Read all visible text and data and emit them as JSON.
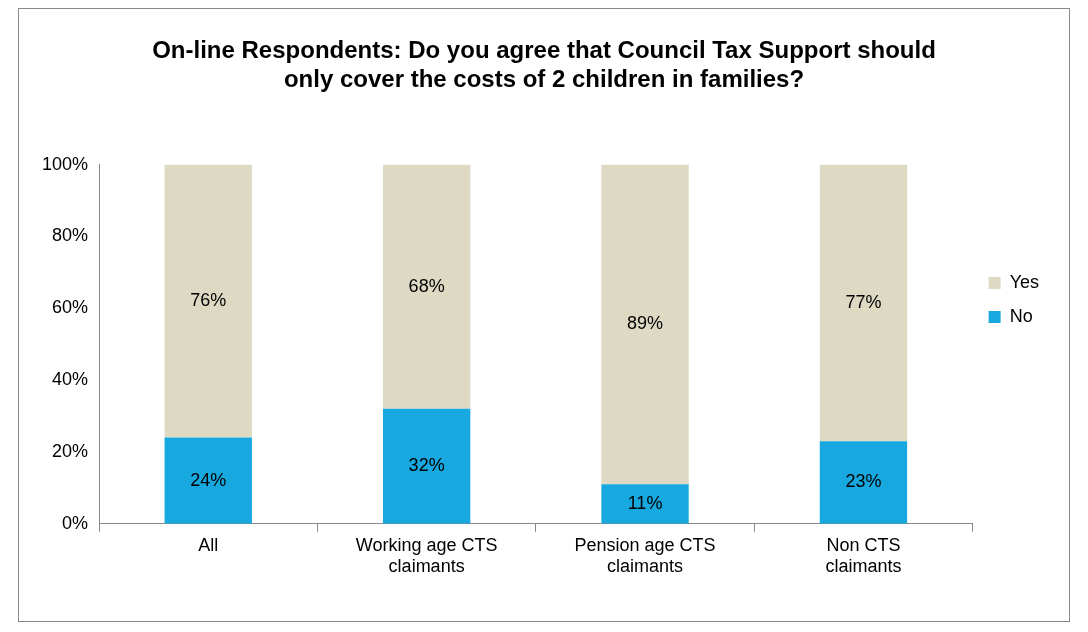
{
  "chart_data": {
    "type": "bar",
    "stacked": true,
    "title": "On-line Respondents: Do you agree that Council Tax Support should only cover the costs of 2 children in families?",
    "categories": [
      "All",
      "Working age CTS claimants",
      "Pension age CTS claimants",
      "Non CTS claimants"
    ],
    "series": [
      {
        "name": "No",
        "color": "#17a8e0",
        "values": [
          24,
          32,
          11,
          23
        ],
        "value_labels": [
          "24%",
          "32%",
          "11%",
          "23%"
        ]
      },
      {
        "name": "Yes",
        "color": "#ddd9c3",
        "values": [
          76,
          68,
          89,
          77
        ],
        "value_labels": [
          "76%",
          "68%",
          "89%",
          "77%"
        ]
      }
    ],
    "ylim": [
      0,
      100
    ],
    "yticks": [
      {
        "value": 0,
        "label": "0%"
      },
      {
        "value": 20,
        "label": "20%"
      },
      {
        "value": 40,
        "label": "40%"
      },
      {
        "value": 60,
        "label": "60%"
      },
      {
        "value": 80,
        "label": "80%"
      },
      {
        "value": 100,
        "label": "100%"
      }
    ],
    "grid": false,
    "legend": "right"
  }
}
